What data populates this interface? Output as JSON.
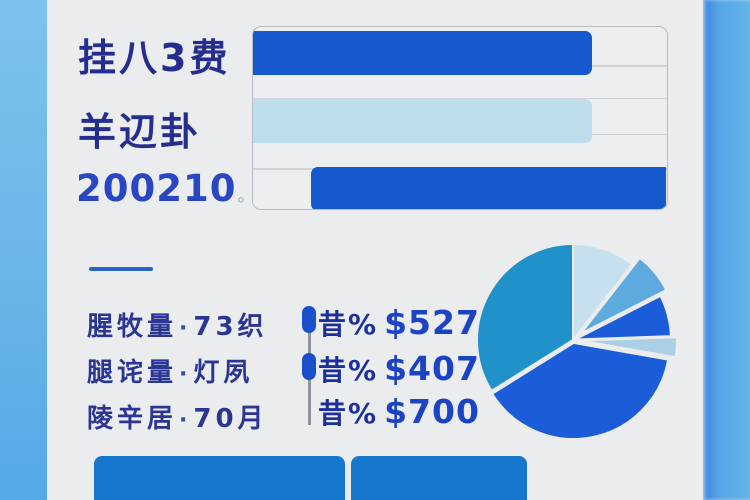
{
  "header": {
    "line1": "挂八3费",
    "line2": "羊辺卦",
    "number": "200210",
    "number_suffix": "◦"
  },
  "stats": {
    "rows": [
      {
        "label": "腥牧量",
        "sep": "·",
        "value": "73织"
      },
      {
        "label": "腿诧量",
        "sep": "·",
        "value": "灯夙"
      },
      {
        "label": "陵辛居",
        "sep": "·",
        "value": "70月"
      }
    ]
  },
  "metrics": {
    "rows": [
      {
        "prefix": "昔%",
        "value": "$527P",
        "marker": true
      },
      {
        "prefix": "昔%",
        "value": "$4070",
        "marker": true
      },
      {
        "prefix": "昔%",
        "value": "$700",
        "marker": false
      }
    ]
  },
  "chart_data": [
    {
      "type": "bar",
      "orientation": "horizontal",
      "title": "",
      "categories": [
        "row1",
        "row2",
        "row3"
      ],
      "bars": [
        {
          "start_pct": 0,
          "end_pct": 82,
          "color": "#1659cf"
        },
        {
          "start_pct": 0,
          "end_pct": 82,
          "color": "#bedded"
        },
        {
          "start_pct": 14,
          "end_pct": 100,
          "color": "#1659cf"
        }
      ],
      "gridlines_pct": [
        21,
        39,
        59,
        78
      ],
      "grid": true,
      "legend": false
    },
    {
      "type": "pie",
      "title": "",
      "values_pct": [
        10.6,
        6.9,
        6.9,
        3.3,
        38.3,
        33.9
      ],
      "slices": [
        {
          "start_deg": 0,
          "end_deg": 38,
          "color": "#c7e0ef",
          "explode": 0
        },
        {
          "start_deg": 38,
          "end_deg": 63,
          "color": "#5ea9de",
          "explode": 10
        },
        {
          "start_deg": 63,
          "end_deg": 88,
          "color": "#1b5cd9",
          "explode": 2
        },
        {
          "start_deg": 88,
          "end_deg": 100,
          "color": "#abd0e5",
          "explode": 8
        },
        {
          "start_deg": 100,
          "end_deg": 238,
          "color": "#1b5cd9",
          "explode": 3
        },
        {
          "start_deg": 238,
          "end_deg": 360,
          "color": "#2191c9",
          "explode": 0
        }
      ],
      "legend": false
    }
  ],
  "colors": {
    "card_bg": "#ebecee",
    "rail_left": "#6ab5e9",
    "rail_right": "#57a6e6",
    "bar_royal": "#1659cf",
    "bar_light": "#bedded",
    "title_navy": "#252e8c",
    "number_blue": "#2946c4",
    "value_blue": "#1c43c4",
    "button_blue": "#1677cf",
    "pie_teal": "#2191c9"
  }
}
